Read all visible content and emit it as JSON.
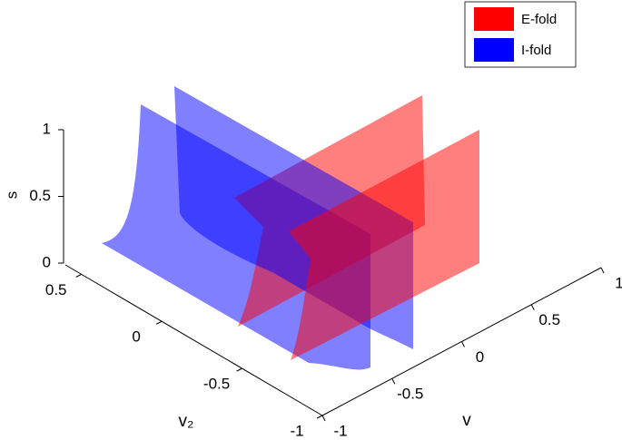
{
  "chart_data": {
    "type": "surface3d",
    "xlabel": "v",
    "ylabel": "v₂",
    "zlabel": "s",
    "xlim": [
      -1,
      1
    ],
    "xticks": [
      -1,
      -0.5,
      0,
      0.5,
      1
    ],
    "ylim": [
      -1,
      0.6
    ],
    "yticks": [
      -1,
      -0.5,
      0,
      0.5
    ],
    "zlim": [
      0,
      1
    ],
    "zticks": [
      0,
      0.5,
      1
    ],
    "legend": "upper right",
    "series": [
      {
        "name": "E-fold",
        "color": "#ff0000"
      },
      {
        "name": "I-fold",
        "color": "#0000ff"
      }
    ]
  }
}
